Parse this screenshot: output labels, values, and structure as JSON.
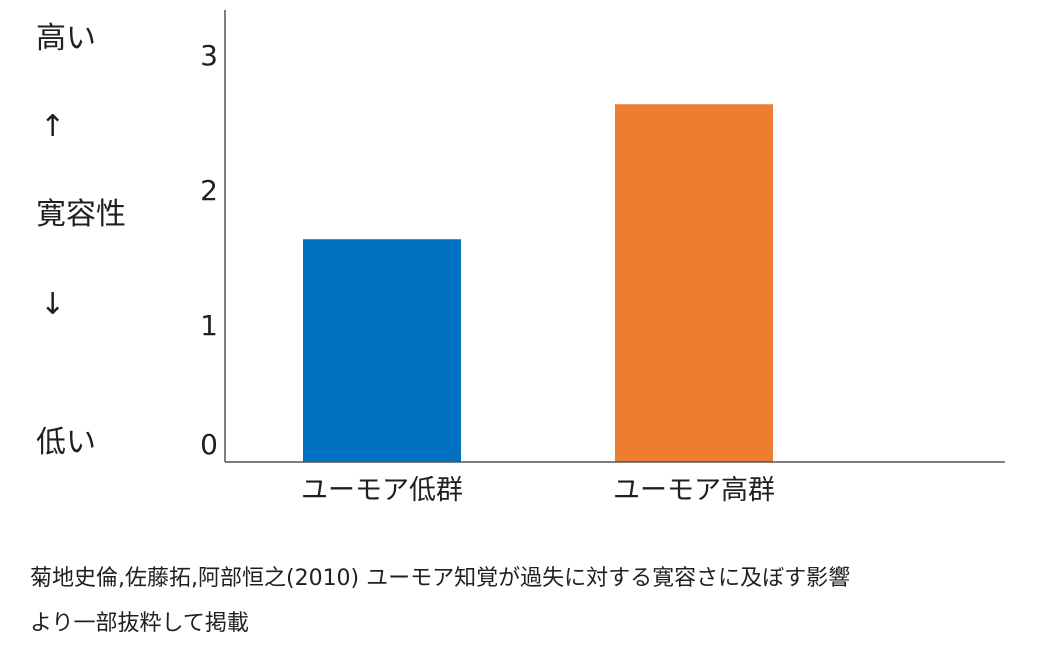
{
  "y_axis_side_label": {
    "top": "高い",
    "up_arrow": "↑",
    "middle": "寛容性",
    "down_arrow": "↓",
    "bottom": "低い"
  },
  "chart_data": {
    "type": "bar",
    "categories": [
      "ユーモア低群",
      "ユーモア高群"
    ],
    "values": [
      1.65,
      2.65
    ],
    "colors": [
      "#0070c0",
      "#ed7d31"
    ],
    "ylim": [
      0,
      3.3
    ],
    "yticks": [
      0,
      1,
      2,
      3
    ],
    "grid": false,
    "title": "",
    "xlabel": ""
  },
  "caption": {
    "line1": "菊地史倫,佐藤拓,阿部恒之(2010) ユーモア知覚が過失に対する寛容さに及ぼす影響",
    "line2": "より一部抜粋して掲載"
  }
}
